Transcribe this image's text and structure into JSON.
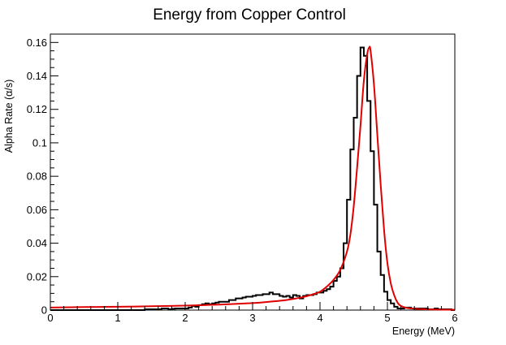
{
  "chart_data": {
    "type": "line",
    "title": "Energy from Copper Control",
    "xlabel": "Energy (MeV)",
    "ylabel": "Alpha Rate (α/s)",
    "xlim": [
      0,
      6
    ],
    "ylim": [
      0,
      0.165
    ],
    "grid": false,
    "legend": "none",
    "x_ticks": [
      "0",
      "1",
      "2",
      "3",
      "4",
      "5",
      "6"
    ],
    "y_ticks": [
      "0",
      "0.02",
      "0.04",
      "0.06",
      "0.08",
      "0.1",
      "0.12",
      "0.14",
      "0.16"
    ],
    "series": [
      {
        "kind": "histogram",
        "color": "#000000",
        "bin_width": 0.05,
        "x_start": 0,
        "values": [
          0,
          0,
          0,
          0,
          0,
          0,
          0,
          0,
          0,
          0,
          0,
          0,
          0,
          0,
          0,
          0,
          0,
          0,
          0,
          0,
          0,
          0,
          0,
          0,
          0,
          0,
          0,
          0,
          0.0005,
          0.0005,
          0.0005,
          0.0005,
          0.0005,
          0.001,
          0.001,
          0.0005,
          0.0008,
          0.001,
          0.001,
          0.001,
          0.001,
          0.0015,
          0.0025,
          0.002,
          0.003,
          0.0035,
          0.004,
          0.0035,
          0.004,
          0.0045,
          0.005,
          0.005,
          0.005,
          0.006,
          0.006,
          0.007,
          0.007,
          0.0075,
          0.008,
          0.008,
          0.0085,
          0.009,
          0.009,
          0.0095,
          0.0095,
          0.0105,
          0.0095,
          0.0095,
          0.0085,
          0.008,
          0.0085,
          0.0075,
          0.009,
          0.0085,
          0.007,
          0.0085,
          0.009,
          0.009,
          0.0095,
          0.0105,
          0.0105,
          0.0115,
          0.0125,
          0.014,
          0.0175,
          0.02,
          0.025,
          0.04,
          0.066,
          0.096,
          0.115,
          0.14,
          0.157,
          0.152,
          0.125,
          0.095,
          0.063,
          0.035,
          0.021,
          0.011,
          0.006,
          0.004,
          0.002,
          0.001,
          0.001,
          0.0015,
          0.0015,
          0.001,
          0.001,
          0.001,
          0.001,
          0.001,
          0.0005,
          0.0005,
          0.001,
          0.0005,
          0.0005,
          0.0005,
          0.0005,
          0
        ]
      },
      {
        "kind": "fit",
        "color": "#e00000",
        "x": [
          0,
          0.5,
          1,
          1.5,
          2,
          2.5,
          3,
          3.25,
          3.5,
          3.75,
          3.9,
          4.0,
          4.1,
          4.2,
          4.3,
          4.4,
          4.45,
          4.5,
          4.55,
          4.6,
          4.65,
          4.7,
          4.73,
          4.75,
          4.8,
          4.85,
          4.9,
          4.95,
          5.0,
          5.05,
          5.1,
          5.15,
          5.2,
          5.3,
          5.5,
          5.75,
          6.0
        ],
        "y": [
          0.0015,
          0.0018,
          0.002,
          0.0023,
          0.0027,
          0.0033,
          0.0042,
          0.005,
          0.006,
          0.0078,
          0.0095,
          0.011,
          0.014,
          0.018,
          0.024,
          0.035,
          0.045,
          0.062,
          0.085,
          0.11,
          0.137,
          0.153,
          0.157,
          0.155,
          0.135,
          0.105,
          0.075,
          0.048,
          0.028,
          0.016,
          0.009,
          0.0045,
          0.0025,
          0.0012,
          0.0006,
          0.0003,
          0.0002
        ]
      }
    ]
  }
}
